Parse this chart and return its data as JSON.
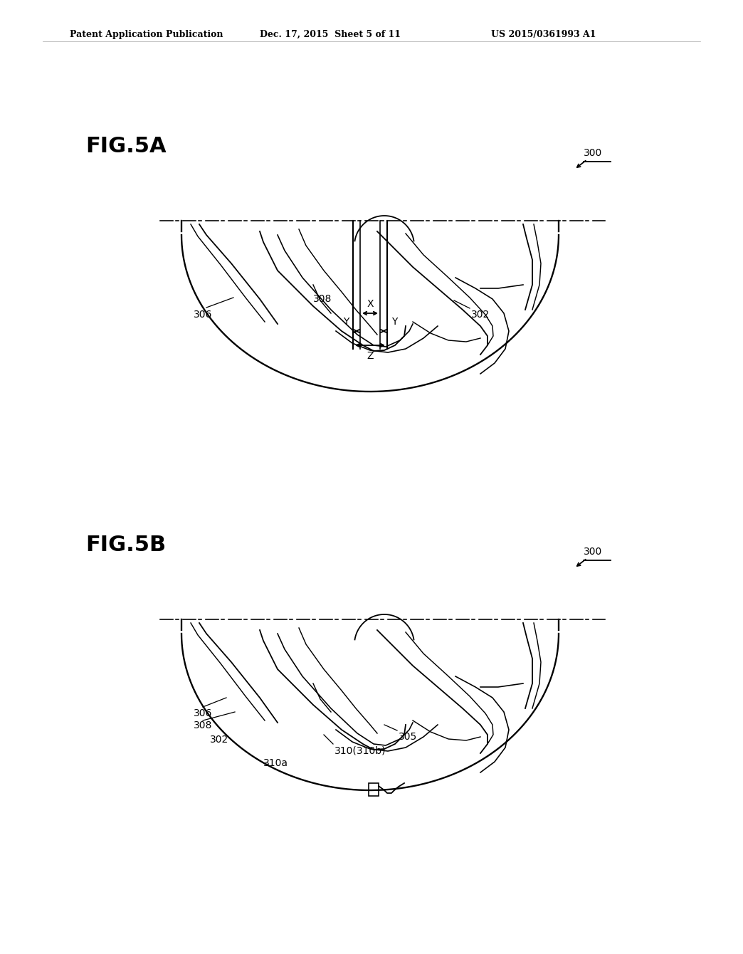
{
  "fig_title_a": "FIG.5A",
  "fig_title_b": "FIG.5B",
  "patent_header_left": "Patent Application Publication",
  "patent_header_mid": "Dec. 17, 2015  Sheet 5 of 11",
  "patent_header_right": "US 2015/0361993 A1",
  "label_300": "300",
  "label_302_a": "302",
  "label_306_a": "306",
  "label_308_a": "308",
  "label_X": "X",
  "label_Y_left": "Y",
  "label_Y_right": "Y",
  "label_Z": "Z",
  "label_300_b": "300",
  "label_302_b": "302",
  "label_305_b": "305",
  "label_306_b": "306",
  "label_308_b": "308",
  "label_310": "310(310b)",
  "label_310a": "310a",
  "bg_color": "#ffffff",
  "line_color": "#000000",
  "line_width": 1.3
}
